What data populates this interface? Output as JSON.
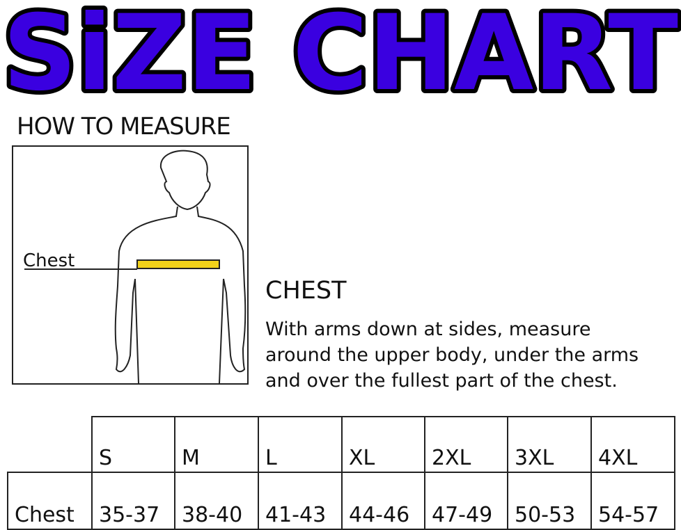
{
  "title": "SiZE CHART",
  "title_color": "#3a00e0",
  "how_to_measure": "HOW TO MEASURE",
  "figure": {
    "chest_label": "Chest",
    "tape_color": "#f2d21a"
  },
  "chest_heading": "CHEST",
  "chest_description": [
    "With arms down at sides, measure",
    "around the upper body, under the arms",
    "and over the fullest part of the chest."
  ],
  "table": {
    "sizes": [
      "S",
      "M",
      "L",
      "XL",
      "2XL",
      "3XL",
      "4XL"
    ],
    "rows": [
      {
        "label": "Chest",
        "values": [
          "35-37",
          "38-40",
          "41-43",
          "44-46",
          "47-49",
          "50-53",
          "54-57"
        ]
      }
    ]
  }
}
